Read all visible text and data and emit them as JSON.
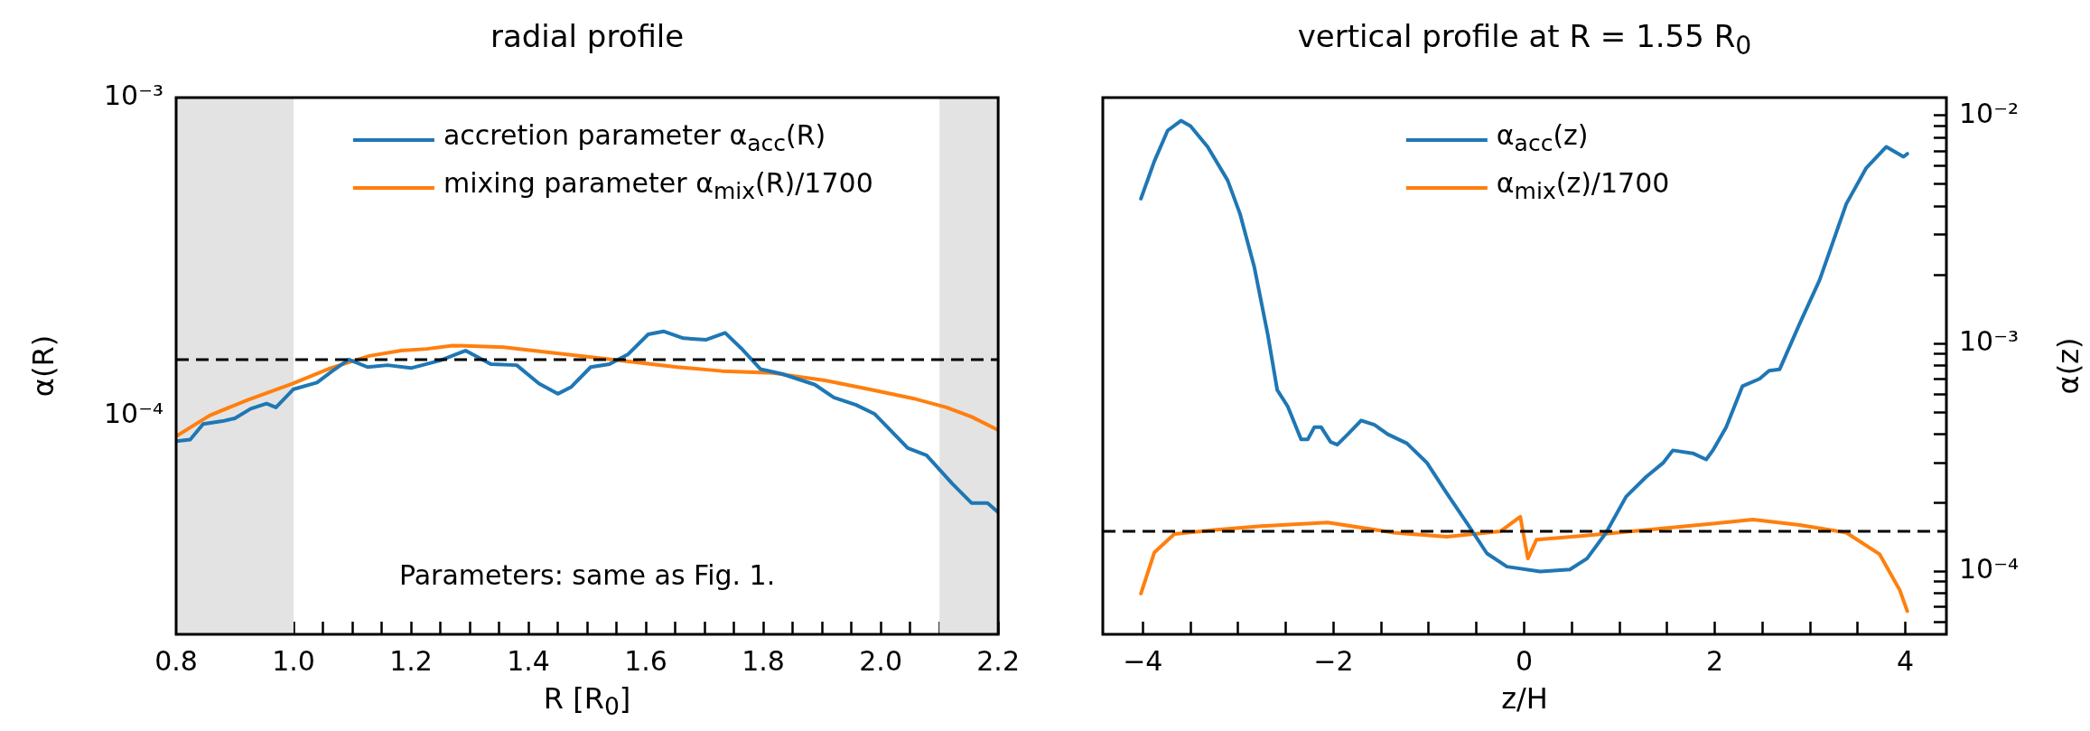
{
  "chart_data": [
    {
      "type": "line",
      "title": "radial profile",
      "xlabel": "R [R$_{0}$]",
      "ylabel": "α(R)",
      "log": "y",
      "legend": "top",
      "marker": "none",
      "line_style": "solid",
      "grid": false,
      "xlim": [
        0.8,
        2.2
      ],
      "xticks": [
        {
          "value": 0.8,
          "label": "0.8"
        },
        {
          "value": 0.85,
          "label": null
        },
        {
          "value": 0.9,
          "label": null
        },
        {
          "value": 0.95,
          "label": null
        },
        {
          "value": 1.0,
          "label": "1.0"
        },
        {
          "value": 1.05,
          "label": null
        },
        {
          "value": 1.1,
          "label": null
        },
        {
          "value": 1.15,
          "label": null
        },
        {
          "value": 1.2,
          "label": "1.2"
        },
        {
          "value": 1.25,
          "label": null
        },
        {
          "value": 1.3,
          "label": null
        },
        {
          "value": 1.35,
          "label": null
        },
        {
          "value": 1.4,
          "label": "1.4"
        },
        {
          "value": 1.45,
          "label": null
        },
        {
          "value": 1.5,
          "label": null
        },
        {
          "value": 1.55,
          "label": null
        },
        {
          "value": 1.6,
          "label": "1.6"
        },
        {
          "value": 1.65,
          "label": null
        },
        {
          "value": 1.7,
          "label": null
        },
        {
          "value": 1.75,
          "label": null
        },
        {
          "value": 1.8,
          "label": "1.8"
        },
        {
          "value": 1.85,
          "label": null
        },
        {
          "value": 1.9,
          "label": null
        },
        {
          "value": 1.95,
          "label": null
        },
        {
          "value": 2.0,
          "label": "2.0"
        },
        {
          "value": 2.05,
          "label": null
        },
        {
          "value": 2.1,
          "label": null
        },
        {
          "value": 2.15,
          "label": null
        },
        {
          "value": 2.2,
          "label": "2.2"
        }
      ],
      "ylim": [
        2.05e-05,
        0.001
      ],
      "yticks": [
        {
          "value": 3e-05,
          "label": null
        },
        {
          "value": 4e-05,
          "label": null
        },
        {
          "value": 5e-05,
          "label": null
        },
        {
          "value": 6e-05,
          "label": null
        },
        {
          "value": 7e-05,
          "label": null
        },
        {
          "value": 8e-05,
          "label": null
        },
        {
          "value": 9e-05,
          "label": null
        },
        {
          "value": 0.0001,
          "label": "10⁻⁴"
        },
        {
          "value": 0.0002,
          "label": null
        },
        {
          "value": 0.0003,
          "label": null
        },
        {
          "value": 0.0004,
          "label": null
        },
        {
          "value": 0.0005,
          "label": null
        },
        {
          "value": 0.0006,
          "label": null
        },
        {
          "value": 0.0007,
          "label": null
        },
        {
          "value": 0.0008,
          "label": null
        },
        {
          "value": 0.0009,
          "label": null
        },
        {
          "value": 0.001,
          "label": "10⁻³"
        }
      ],
      "bands": [
        {
          "axis": "x",
          "from": 0.8,
          "to": 1.0,
          "color": "#e3e3e3"
        },
        {
          "axis": "x",
          "from": 2.1,
          "to": 2.2,
          "color": "#e3e3e3"
        }
      ],
      "ref_lines": [
        {
          "axis": "y",
          "value": 0.00015,
          "color": "#000000",
          "line_style": "dashed"
        }
      ],
      "annotations": [
        "Parameters: same as Fig. 1."
      ],
      "series": [
        {
          "name": "accretion parameter α$_{acc}$(R)",
          "color": "#1f77b4",
          "x": [
            0.8,
            0.824,
            0.846,
            0.879,
            0.9,
            0.927,
            0.954,
            0.97,
            1.0,
            1.04,
            1.066,
            1.094,
            1.126,
            1.16,
            1.2,
            1.25,
            1.293,
            1.336,
            1.38,
            1.418,
            1.45,
            1.473,
            1.506,
            1.538,
            1.57,
            1.604,
            1.63,
            1.664,
            1.702,
            1.735,
            1.762,
            1.795,
            1.833,
            1.888,
            1.92,
            1.958,
            1.99,
            2.024,
            2.046,
            2.078,
            2.122,
            2.155,
            2.182,
            2.2
          ],
          "values": [
            8.3e-05,
            8.4e-05,
            9.4e-05,
            9.6e-05,
            9.8e-05,
            0.000105,
            0.000109,
            0.000106,
            0.000121,
            0.000127,
            0.000138,
            0.00015,
            0.000142,
            0.000144,
            0.000141,
            0.000149,
            0.00016,
            0.000145,
            0.000144,
            0.000126,
            0.000117,
            0.000123,
            0.000142,
            0.000145,
            0.000156,
            0.00018,
            0.000184,
            0.000175,
            0.000173,
            0.000182,
            0.000163,
            0.00014,
            0.000135,
            0.000125,
            0.000114,
            0.000108,
            0.000101,
            8.7e-05,
            7.9e-05,
            7.5e-05,
            6.1e-05,
            5.3e-05,
            5.3e-05,
            4.96e-05
          ]
        },
        {
          "name": "mixing parameter α$_{mix}$(R)/1700",
          "color": "#ff7f0e",
          "x": [
            0.8,
            0.857,
            0.922,
            0.998,
            1.063,
            1.129,
            1.183,
            1.227,
            1.271,
            1.358,
            1.435,
            1.544,
            1.653,
            1.73,
            1.817,
            1.905,
            1.98,
            2.057,
            2.112,
            2.155,
            2.2
          ],
          "values": [
            8.6e-05,
            0.0001,
            0.000112,
            0.000126,
            0.000141,
            0.000154,
            0.00016,
            0.000162,
            0.000166,
            0.000164,
            0.000158,
            0.00015,
            0.000142,
            0.000138,
            0.000136,
            0.000129,
            0.000121,
            0.000113,
            0.000106,
            9.9e-05,
            9e-05
          ]
        }
      ]
    },
    {
      "type": "line",
      "title": "vertical profile at R = 1.55 R$_{0}$",
      "xlabel": "z/H",
      "y2label": "α(z)",
      "log": "y2",
      "legend": "top",
      "marker": "none",
      "line_style": "solid",
      "grid": false,
      "xlim": [
        -4.42,
        4.43
      ],
      "xticks": [
        {
          "value": -4,
          "label": "−4"
        },
        {
          "value": -3.5,
          "label": null
        },
        {
          "value": -3,
          "label": null
        },
        {
          "value": -2.5,
          "label": null
        },
        {
          "value": -2,
          "label": "−2"
        },
        {
          "value": -1.5,
          "label": null
        },
        {
          "value": -1,
          "label": null
        },
        {
          "value": -0.5,
          "label": null
        },
        {
          "value": 0,
          "label": "0"
        },
        {
          "value": 0.5,
          "label": null
        },
        {
          "value": 1,
          "label": null
        },
        {
          "value": 1.5,
          "label": null
        },
        {
          "value": 2,
          "label": "2"
        },
        {
          "value": 2.5,
          "label": null
        },
        {
          "value": 3,
          "label": null
        },
        {
          "value": 3.5,
          "label": null
        },
        {
          "value": 4,
          "label": "4"
        }
      ],
      "y2lim": [
        5.3e-05,
        0.012
      ],
      "y2ticks": [
        {
          "value": 6e-05,
          "label": null
        },
        {
          "value": 7e-05,
          "label": null
        },
        {
          "value": 8e-05,
          "label": null
        },
        {
          "value": 9e-05,
          "label": null
        },
        {
          "value": 0.0001,
          "label": "10⁻⁴"
        },
        {
          "value": 0.0002,
          "label": null
        },
        {
          "value": 0.0003,
          "label": null
        },
        {
          "value": 0.0004,
          "label": null
        },
        {
          "value": 0.0005,
          "label": null
        },
        {
          "value": 0.0006,
          "label": null
        },
        {
          "value": 0.0007,
          "label": null
        },
        {
          "value": 0.0008,
          "label": null
        },
        {
          "value": 0.0009,
          "label": null
        },
        {
          "value": 0.001,
          "label": "10⁻³"
        },
        {
          "value": 0.002,
          "label": null
        },
        {
          "value": 0.003,
          "label": null
        },
        {
          "value": 0.004,
          "label": null
        },
        {
          "value": 0.005,
          "label": null
        },
        {
          "value": 0.006,
          "label": null
        },
        {
          "value": 0.007,
          "label": null
        },
        {
          "value": 0.008,
          "label": null
        },
        {
          "value": 0.009,
          "label": null
        },
        {
          "value": 0.01,
          "label": "10⁻²"
        }
      ],
      "ref_lines": [
        {
          "axis": "y2",
          "value": 0.00015,
          "color": "#000000",
          "line_style": "dashed"
        }
      ],
      "series": [
        {
          "name": "α$_{acc}$(z)",
          "axis": "y2",
          "color": "#1f77b4",
          "x": [
            -4.02,
            -3.88,
            -3.74,
            -3.6,
            -3.5,
            -3.32,
            -3.11,
            -2.98,
            -2.83,
            -2.69,
            -2.59,
            -2.48,
            -2.34,
            -2.27,
            -2.2,
            -2.13,
            -2.03,
            -1.96,
            -1.85,
            -1.71,
            -1.57,
            -1.43,
            -1.23,
            -1.02,
            -0.81,
            -0.6,
            -0.39,
            -0.18,
            0.17,
            0.48,
            0.66,
            0.86,
            1.07,
            1.28,
            1.46,
            1.56,
            1.77,
            1.91,
            1.98,
            2.12,
            2.29,
            2.47,
            2.57,
            2.68,
            2.89,
            3.1,
            3.38,
            3.59,
            3.8,
            3.98,
            4.02
          ],
          "values": [
            0.00432,
            0.0063,
            0.0086,
            0.0095,
            0.009,
            0.0073,
            0.0052,
            0.0037,
            0.00216,
            0.0011,
            0.000625,
            0.00053,
            0.00038,
            0.00038,
            0.00043,
            0.00043,
            0.00037,
            0.00036,
            0.0004,
            0.00046,
            0.00044,
            0.0004,
            0.000365,
            0.0003,
            0.00022,
            0.000163,
            0.00012,
            0.000105,
            0.0001,
            0.000102,
            0.000114,
            0.000148,
            0.000213,
            0.00026,
            0.0003,
            0.00034,
            0.00033,
            0.00031,
            0.00034,
            0.00043,
            0.00065,
            0.0007,
            0.00076,
            0.00077,
            0.00122,
            0.0019,
            0.0041,
            0.0059,
            0.0073,
            0.0066,
            0.0068
          ]
        },
        {
          "name": "α$_{mix}$(z)/1700",
          "axis": "y2",
          "color": "#ff7f0e",
          "x": [
            -4.02,
            -3.88,
            -3.67,
            -3.25,
            -2.76,
            -2.06,
            -1.37,
            -0.81,
            -0.25,
            -0.04,
            -0.01,
            0.04,
            0.13,
            0.59,
            1.28,
            1.98,
            2.4,
            2.89,
            3.38,
            3.73,
            3.94,
            4.02
          ],
          "values": [
            8e-05,
            0.000121,
            0.000146,
            0.000152,
            0.000158,
            0.000164,
            0.000148,
            0.000142,
            0.00015,
            0.000174,
            0.000148,
            0.000114,
            0.000138,
            0.000143,
            0.000152,
            0.000162,
            0.000169,
            0.00016,
            0.000148,
            0.000119,
            8.3e-05,
            6.7e-05
          ]
        }
      ]
    }
  ]
}
